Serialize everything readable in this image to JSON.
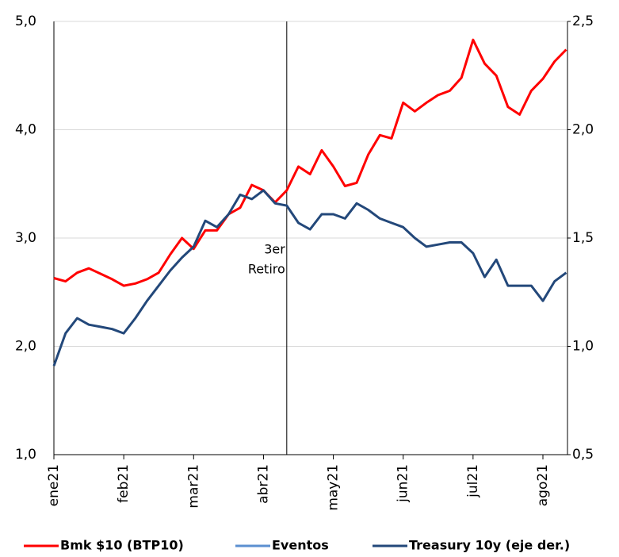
{
  "chart_data": {
    "type": "line",
    "categories": [
      "ene21",
      null,
      null,
      null,
      null,
      null,
      "feb21",
      null,
      null,
      null,
      null,
      null,
      "mar21",
      null,
      null,
      null,
      null,
      null,
      "abr21",
      null,
      null,
      null,
      null,
      null,
      "may21",
      null,
      null,
      null,
      null,
      null,
      "jun21",
      null,
      null,
      null,
      null,
      null,
      "jul21",
      null,
      null,
      null,
      null,
      null,
      "ago21",
      null,
      null
    ],
    "series": [
      {
        "name": "Bmk $10 (BTP10)",
        "color": "#ff0000",
        "values": [
          2.63,
          2.6,
          2.68,
          2.72,
          2.67,
          2.62,
          2.56,
          2.58,
          2.62,
          2.68,
          2.85,
          3.0,
          2.9,
          3.07,
          3.07,
          3.22,
          3.28,
          3.49,
          3.44,
          3.33,
          3.44,
          3.66,
          3.59,
          3.81,
          3.66,
          3.48,
          3.51,
          3.77,
          3.95,
          3.92,
          4.25,
          4.17,
          4.25,
          4.32,
          4.36,
          4.48,
          4.83,
          4.61,
          4.5,
          4.21,
          4.14,
          4.36,
          4.47,
          4.63,
          4.74
        ]
      },
      {
        "name": "Eventos",
        "color": "#5b8fd0",
        "values": [
          null,
          null,
          null,
          null,
          null,
          null,
          null,
          null,
          null,
          null,
          null,
          null,
          null,
          null,
          null,
          null,
          null,
          null,
          null,
          null,
          null,
          null,
          null,
          null,
          null,
          null,
          null,
          null,
          null,
          null,
          null,
          null,
          null,
          null,
          null,
          null,
          null,
          null,
          null,
          null,
          null,
          null,
          null,
          null,
          null
        ]
      },
      {
        "name": "Treasury 10y (eje der.)",
        "color": "#23487a",
        "axis": "y2",
        "values": [
          0.91,
          1.06,
          1.13,
          1.1,
          1.09,
          1.08,
          1.06,
          1.13,
          1.21,
          1.28,
          1.35,
          1.41,
          1.46,
          1.58,
          1.55,
          1.61,
          1.7,
          1.68,
          1.72,
          1.66,
          1.65,
          1.57,
          1.54,
          1.61,
          1.61,
          1.59,
          1.66,
          1.63,
          1.59,
          1.57,
          1.55,
          1.5,
          1.46,
          1.47,
          1.48,
          1.48,
          1.43,
          1.32,
          1.4,
          1.28,
          1.28,
          1.28,
          1.21,
          1.3,
          1.34
        ]
      }
    ],
    "ylim": [
      1,
      5
    ],
    "yticks": [
      {
        "value": 1,
        "label": "1,0"
      },
      {
        "value": 2,
        "label": "2,0"
      },
      {
        "value": 3,
        "label": "3,0"
      },
      {
        "value": 4,
        "label": "4,0"
      },
      {
        "value": 5,
        "label": "5,0"
      }
    ],
    "y2lim": [
      0.5,
      2.5
    ],
    "y2ticks": [
      {
        "value": 0.5,
        "label": "0,5"
      },
      {
        "value": 1,
        "label": "1,0"
      },
      {
        "value": 1.5,
        "label": "1,5"
      },
      {
        "value": 2,
        "label": "2,0"
      },
      {
        "value": 2.5,
        "label": "2,5"
      }
    ],
    "grid": true,
    "annotation": {
      "x": 20,
      "text": [
        "3er",
        "Retiro"
      ]
    }
  }
}
